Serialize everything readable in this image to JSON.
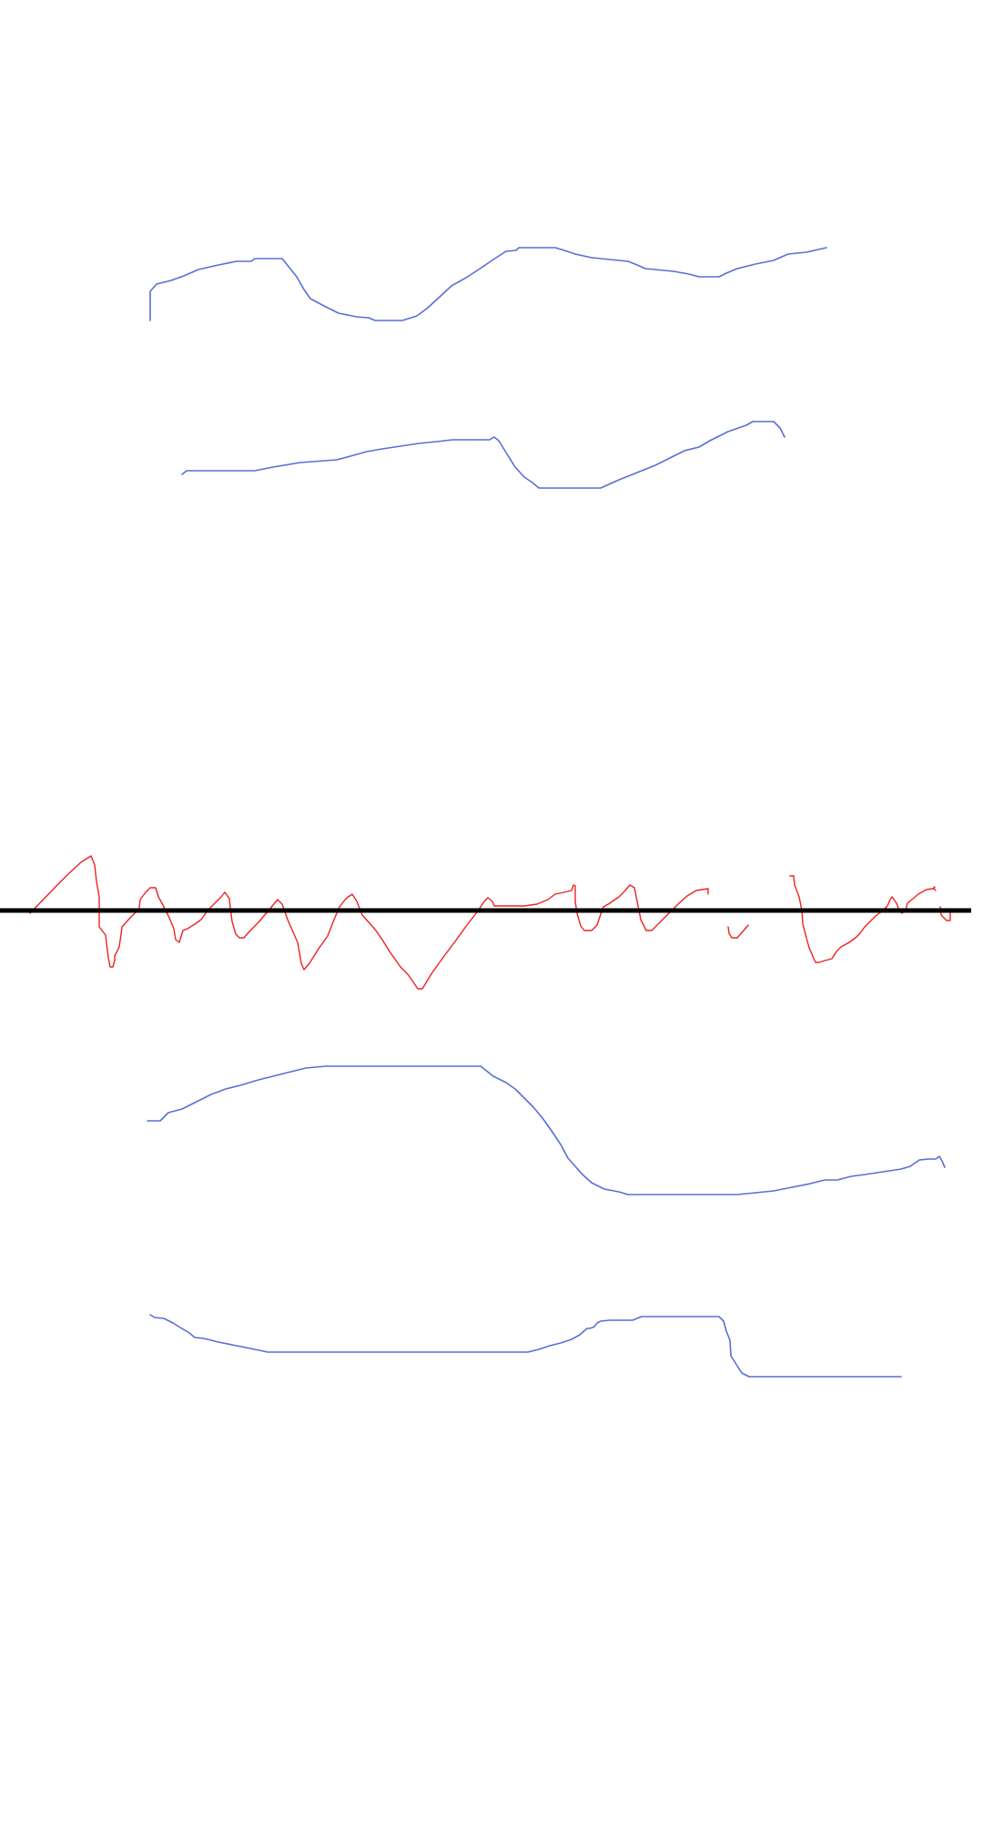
{
  "colors": {
    "background": "#ffffff",
    "upper_curves": "#5a6fd6",
    "signal_trace": "#ee2222",
    "baseline": "#000000"
  },
  "elements": {
    "upper_curves": [
      "curve-1",
      "curve-2"
    ],
    "signal_trace": "red-signal-trace",
    "baseline": "horizontal-baseline",
    "lower_curves": [
      "curve-3",
      "curve-4"
    ]
  }
}
